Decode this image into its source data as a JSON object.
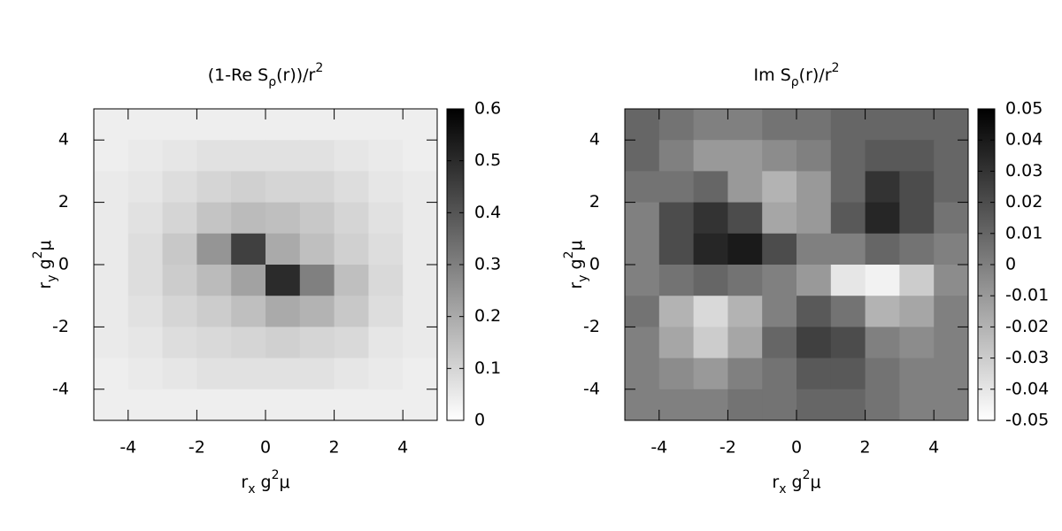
{
  "chart_data": [
    {
      "type": "heatmap",
      "title": [
        "(1-Re S",
        "ρ",
        "(r))/r",
        "2"
      ],
      "xlabel": [
        "r",
        "x",
        " g",
        "2",
        "μ"
      ],
      "ylabel": [
        "r",
        "y",
        " g",
        "2",
        "μ"
      ],
      "xlim": [
        -5,
        5
      ],
      "ylim": [
        -5,
        5
      ],
      "xticks": [
        -4,
        -2,
        0,
        2,
        4
      ],
      "yticks": [
        -4,
        -2,
        0,
        2,
        4
      ],
      "zlim": [
        0,
        0.6
      ],
      "zticks": [
        0,
        0.1,
        0.2,
        0.3,
        0.4,
        0.5,
        0.6
      ],
      "palette": [
        "#ffffff",
        "#000000"
      ],
      "x": [
        -4.5,
        -3.5,
        -2.5,
        -1.5,
        -0.5,
        0.5,
        1.5,
        2.5,
        3.5,
        4.5
      ],
      "y": [
        4.5,
        3.5,
        2.5,
        1.5,
        0.5,
        -0.5,
        -1.5,
        -2.5,
        -3.5,
        -4.5
      ],
      "z": [
        [
          0.04,
          0.04,
          0.04,
          0.04,
          0.04,
          0.04,
          0.04,
          0.04,
          0.04,
          0.04
        ],
        [
          0.04,
          0.05,
          0.06,
          0.07,
          0.07,
          0.07,
          0.07,
          0.06,
          0.05,
          0.04
        ],
        [
          0.05,
          0.06,
          0.08,
          0.1,
          0.11,
          0.1,
          0.1,
          0.08,
          0.06,
          0.05
        ],
        [
          0.05,
          0.07,
          0.1,
          0.14,
          0.16,
          0.15,
          0.13,
          0.1,
          0.07,
          0.05
        ],
        [
          0.05,
          0.08,
          0.13,
          0.25,
          0.45,
          0.2,
          0.15,
          0.11,
          0.08,
          0.05
        ],
        [
          0.05,
          0.08,
          0.12,
          0.16,
          0.22,
          0.5,
          0.3,
          0.15,
          0.09,
          0.05
        ],
        [
          0.05,
          0.07,
          0.1,
          0.12,
          0.15,
          0.2,
          0.18,
          0.13,
          0.08,
          0.05
        ],
        [
          0.05,
          0.06,
          0.08,
          0.09,
          0.1,
          0.11,
          0.1,
          0.09,
          0.06,
          0.05
        ],
        [
          0.04,
          0.05,
          0.06,
          0.07,
          0.07,
          0.07,
          0.07,
          0.06,
          0.05,
          0.04
        ],
        [
          0.04,
          0.04,
          0.04,
          0.04,
          0.04,
          0.04,
          0.04,
          0.04,
          0.04,
          0.04
        ]
      ]
    },
    {
      "type": "heatmap",
      "title": [
        "Im S",
        "ρ",
        "(r)/r",
        "2"
      ],
      "xlabel": [
        "r",
        "x",
        " g",
        "2",
        "μ"
      ],
      "ylabel": [
        "r",
        "y",
        " g",
        "2",
        "μ"
      ],
      "xlim": [
        -5,
        5
      ],
      "ylim": [
        -5,
        5
      ],
      "xticks": [
        -4,
        -2,
        0,
        2,
        4
      ],
      "yticks": [
        -4,
        -2,
        0,
        2,
        4
      ],
      "zlim": [
        -0.05,
        0.05
      ],
      "zticks": [
        -0.05,
        -0.04,
        -0.03,
        -0.02,
        -0.01,
        0,
        0.01,
        0.02,
        0.03,
        0.04,
        0.05
      ],
      "palette": [
        "#ffffff",
        "#000000"
      ],
      "x": [
        -4.5,
        -3.5,
        -2.5,
        -1.5,
        -0.5,
        0.5,
        1.5,
        2.5,
        3.5,
        4.5
      ],
      "y": [
        4.5,
        3.5,
        2.5,
        1.5,
        0.5,
        -0.5,
        -1.5,
        -2.5,
        -3.5,
        -4.5
      ],
      "z": [
        [
          0.01,
          0.005,
          0,
          0,
          0.005,
          0.005,
          0.01,
          0.01,
          0.01,
          0.01
        ],
        [
          0.01,
          0,
          -0.01,
          -0.01,
          -0.005,
          0,
          0.01,
          0.015,
          0.015,
          0.01
        ],
        [
          0.005,
          0.005,
          0.01,
          -0.01,
          -0.02,
          -0.01,
          0.01,
          0.03,
          0.02,
          0.01
        ],
        [
          0,
          0.02,
          0.03,
          0.02,
          -0.015,
          -0.01,
          0.015,
          0.035,
          0.02,
          0.005
        ],
        [
          0,
          0.02,
          0.035,
          0.04,
          0.02,
          0,
          0,
          0.01,
          0.005,
          0
        ],
        [
          0,
          0.005,
          0.01,
          0.005,
          0,
          -0.01,
          -0.04,
          -0.045,
          -0.03,
          -0.005
        ],
        [
          0.005,
          -0.02,
          -0.035,
          -0.02,
          0,
          0.015,
          0.005,
          -0.02,
          -0.015,
          0
        ],
        [
          0,
          -0.015,
          -0.03,
          -0.015,
          0.01,
          0.025,
          0.02,
          0,
          -0.005,
          0
        ],
        [
          0,
          -0.005,
          -0.01,
          0,
          0.005,
          0.015,
          0.015,
          0.005,
          0,
          0
        ],
        [
          0,
          0,
          0,
          0.005,
          0.005,
          0.01,
          0.01,
          0.005,
          0,
          0
        ]
      ]
    }
  ]
}
